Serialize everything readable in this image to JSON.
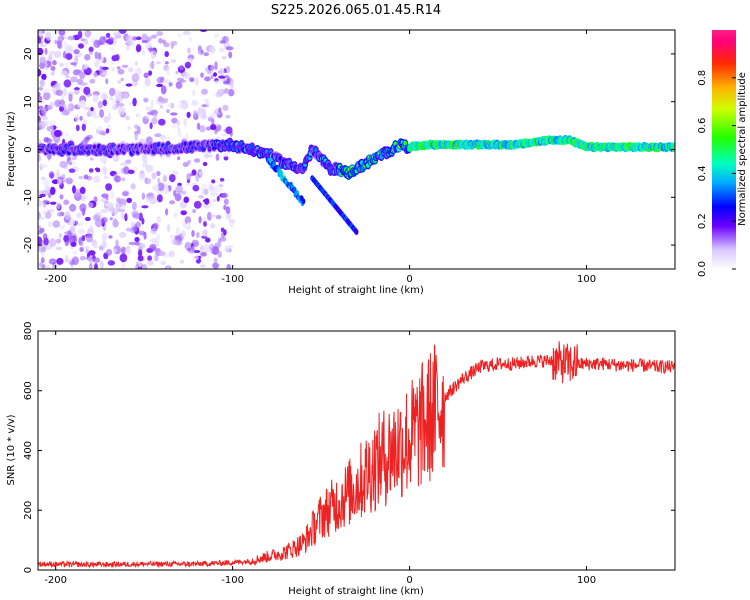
{
  "figure_title": "S225.2026.065.01.45.R14",
  "chart_data": [
    {
      "type": "heatmap",
      "title": "S225.2026.065.01.45.R14",
      "xlabel": "Height of straight line (km)",
      "ylabel": "Frequency (Hz)",
      "xlim": [
        -210,
        150
      ],
      "ylim": [
        -25,
        25
      ],
      "xticks": [
        -200,
        -100,
        0,
        100
      ],
      "yticks": [
        -20,
        -10,
        0,
        10,
        20
      ],
      "grid": false,
      "colorbar": {
        "label": "Normalized spectral amplitude",
        "range": [
          0,
          1
        ],
        "ticks": [
          0.0,
          0.2,
          0.4,
          0.6,
          0.8
        ]
      },
      "signal_track": {
        "x": [
          -210,
          -150,
          -100,
          -80,
          -70,
          -60,
          -55,
          -50,
          -45,
          -40,
          -35,
          -30,
          -25,
          -20,
          -15,
          -10,
          -5,
          0,
          10,
          30,
          60,
          80,
          90,
          100,
          150
        ],
        "frequency": [
          0,
          0,
          1,
          -1,
          -3,
          -4,
          0,
          -2,
          -4,
          -4,
          -5,
          -4,
          -3,
          -2,
          -1,
          0,
          1,
          0.5,
          1,
          1,
          1,
          2,
          2,
          0.5,
          0.5
        ]
      }
    },
    {
      "type": "line",
      "xlabel": "Height of straight line (km)",
      "ylabel": "SNR (10 * v/v)",
      "xlim": [
        -210,
        150
      ],
      "ylim": [
        0,
        800
      ],
      "xticks": [
        -200,
        -100,
        0,
        100
      ],
      "yticks": [
        0,
        200,
        400,
        600,
        800
      ],
      "grid": false,
      "series": [
        {
          "name": "SNR",
          "color": "#ee2222",
          "x": [
            -210,
            -180,
            -150,
            -120,
            -100,
            -90,
            -80,
            -70,
            -60,
            -50,
            -40,
            -30,
            -20,
            -10,
            0,
            10,
            20,
            30,
            40,
            50,
            60,
            70,
            80,
            90,
            100,
            110,
            120,
            130,
            140,
            150
          ],
          "values": [
            20,
            18,
            20,
            20,
            25,
            30,
            45,
            60,
            90,
            180,
            230,
            280,
            350,
            400,
            440,
            500,
            580,
            640,
            680,
            690,
            690,
            700,
            700,
            690,
            690,
            690,
            685,
            685,
            680,
            680
          ]
        }
      ]
    }
  ]
}
